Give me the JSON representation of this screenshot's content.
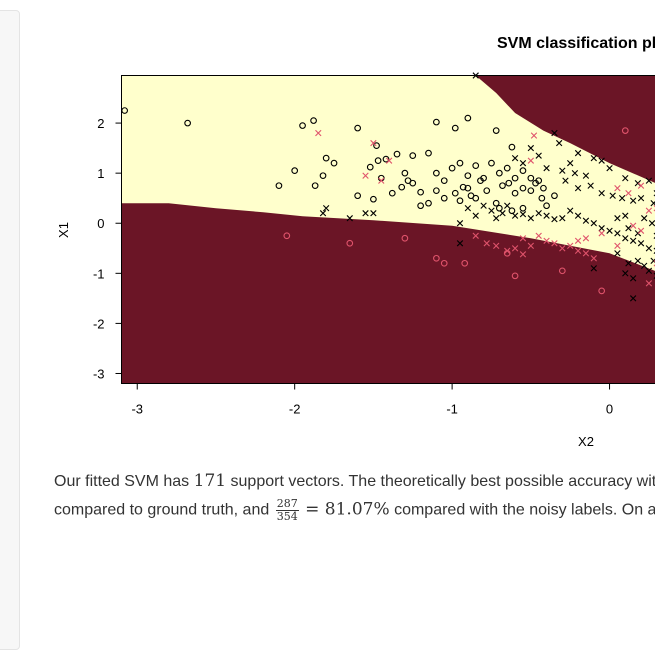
{
  "sidebar": {},
  "chart_data": {
    "type": "scatter",
    "title": "SVM classification plot",
    "xlabel": "X2",
    "ylabel": "X1",
    "xticks": [
      "-3",
      "-2",
      "-1",
      "0"
    ],
    "yticks": [
      "2",
      "1",
      "0",
      "-1",
      "-2",
      "-3"
    ],
    "xlim": [
      -3.1,
      0.33
    ],
    "ylim": [
      -3.2,
      2.95
    ],
    "region_colors": {
      "class_a": "#6b1526",
      "class_b": "#ffffcc"
    },
    "marker_colors": {
      "black": "#000000",
      "red": "#df536b"
    },
    "lower_boundary": [
      [
        -3.1,
        0.4
      ],
      [
        -2.8,
        0.4
      ],
      [
        -2.5,
        0.3
      ],
      [
        -2.2,
        0.22
      ],
      [
        -1.95,
        0.14
      ],
      [
        -1.5,
        0.06
      ],
      [
        -1.0,
        -0.05
      ],
      [
        -0.5,
        -0.3
      ],
      [
        0.0,
        -0.6
      ],
      [
        0.33,
        -1.0
      ]
    ],
    "upper_boundary": [
      [
        -0.85,
        3.0
      ],
      [
        -0.72,
        2.6
      ],
      [
        -0.6,
        2.2
      ],
      [
        -0.42,
        1.85
      ],
      [
        -0.25,
        1.6
      ],
      [
        0.0,
        1.2
      ],
      [
        0.33,
        0.75
      ]
    ],
    "series": [
      {
        "name": "support vectors, class o",
        "marker": "o",
        "color": "#000000",
        "points": [
          [
            -3.08,
            2.25
          ],
          [
            -2.68,
            2.0
          ],
          [
            -1.95,
            1.95
          ],
          [
            -1.88,
            2.05
          ],
          [
            -1.6,
            1.9
          ],
          [
            -1.1,
            2.02
          ],
          [
            -0.98,
            1.9
          ],
          [
            -0.9,
            2.1
          ],
          [
            -0.72,
            1.85
          ],
          [
            -0.62,
            1.52
          ],
          [
            -1.48,
            1.55
          ],
          [
            -1.47,
            1.25
          ],
          [
            -1.42,
            1.28
          ],
          [
            -1.8,
            1.3
          ],
          [
            -1.75,
            1.2
          ],
          [
            -1.35,
            1.38
          ],
          [
            -1.25,
            1.35
          ],
          [
            -1.15,
            1.4
          ],
          [
            -2.0,
            1.05
          ],
          [
            -2.1,
            0.75
          ],
          [
            -1.87,
            0.75
          ],
          [
            -1.82,
            0.95
          ],
          [
            -1.52,
            1.12
          ],
          [
            -1.3,
            1.0
          ],
          [
            -1.25,
            0.8
          ],
          [
            -1.1,
            1.0
          ],
          [
            -1.05,
            0.85
          ],
          [
            -1.0,
            1.1
          ],
          [
            -0.95,
            1.2
          ],
          [
            -0.9,
            0.95
          ],
          [
            -0.85,
            1.15
          ],
          [
            -0.8,
            0.9
          ],
          [
            -0.75,
            1.2
          ],
          [
            -0.7,
            1.0
          ],
          [
            -0.65,
            1.1
          ],
          [
            -0.6,
            0.9
          ],
          [
            -0.55,
            1.05
          ],
          [
            -0.5,
            0.9
          ],
          [
            -0.45,
            0.85
          ],
          [
            -0.42,
            0.7
          ],
          [
            -0.35,
            0.55
          ],
          [
            -1.6,
            0.55
          ],
          [
            -1.5,
            0.48
          ],
          [
            -1.38,
            0.6
          ],
          [
            -1.32,
            0.72
          ],
          [
            -1.28,
            0.85
          ],
          [
            -1.2,
            0.62
          ],
          [
            -1.15,
            0.4
          ],
          [
            -1.1,
            0.65
          ],
          [
            -1.05,
            0.5
          ],
          [
            -0.98,
            0.6
          ],
          [
            -0.95,
            0.45
          ],
          [
            -0.93,
            0.72
          ],
          [
            -0.9,
            0.7
          ],
          [
            -0.88,
            0.55
          ],
          [
            -0.85,
            0.5
          ],
          [
            -0.82,
            0.85
          ],
          [
            -0.78,
            0.65
          ],
          [
            -0.72,
            0.4
          ],
          [
            -0.68,
            0.75
          ],
          [
            -0.64,
            0.8
          ],
          [
            -0.6,
            0.6
          ],
          [
            -0.55,
            0.7
          ],
          [
            -0.5,
            0.65
          ],
          [
            -0.47,
            0.8
          ],
          [
            -0.43,
            0.5
          ],
          [
            -0.4,
            0.35
          ],
          [
            -0.7,
            0.3
          ],
          [
            -0.62,
            0.25
          ],
          [
            -0.55,
            0.3
          ],
          [
            -1.45,
            0.9
          ],
          [
            -1.2,
            0.35
          ]
        ]
      },
      {
        "name": "support vectors, class x",
        "marker": "x",
        "color": "#000000",
        "points": [
          [
            -0.85,
            2.95
          ],
          [
            -0.35,
            1.8
          ],
          [
            -0.25,
            1.2
          ],
          [
            -0.32,
            1.6
          ],
          [
            -0.2,
            1.4
          ],
          [
            -0.1,
            1.3
          ],
          [
            -0.05,
            1.25
          ],
          [
            0.0,
            1.1
          ],
          [
            -0.5,
            1.5
          ],
          [
            -0.45,
            1.35
          ],
          [
            -0.4,
            1.1
          ],
          [
            -0.3,
            1.05
          ],
          [
            -0.22,
            1.0
          ],
          [
            -0.15,
            0.95
          ],
          [
            -0.6,
            1.3
          ],
          [
            -0.55,
            1.2
          ],
          [
            -0.28,
            0.85
          ],
          [
            -0.2,
            0.7
          ],
          [
            -0.12,
            0.75
          ],
          [
            -0.05,
            0.6
          ],
          [
            0.02,
            0.55
          ],
          [
            0.08,
            0.5
          ],
          [
            0.15,
            0.45
          ],
          [
            0.2,
            0.5
          ],
          [
            0.28,
            0.4
          ],
          [
            0.1,
            0.9
          ],
          [
            0.18,
            0.8
          ],
          [
            0.25,
            0.85
          ],
          [
            0.3,
            0.6
          ],
          [
            -1.8,
            0.3
          ],
          [
            -1.82,
            0.2
          ],
          [
            -1.65,
            0.1
          ],
          [
            -1.55,
            0.2
          ],
          [
            -1.5,
            0.2
          ],
          [
            -0.95,
            0.0
          ],
          [
            -0.9,
            0.3
          ],
          [
            -0.85,
            0.15
          ],
          [
            -0.8,
            0.35
          ],
          [
            -0.75,
            0.25
          ],
          [
            -0.72,
            0.1
          ],
          [
            -0.68,
            0.2
          ],
          [
            -0.65,
            0.35
          ],
          [
            -0.6,
            0.15
          ],
          [
            -0.55,
            0.18
          ],
          [
            -0.5,
            0.1
          ],
          [
            -0.45,
            0.2
          ],
          [
            -0.4,
            0.15
          ],
          [
            -0.35,
            0.08
          ],
          [
            -0.3,
            0.1
          ],
          [
            -0.25,
            0.25
          ],
          [
            -0.2,
            0.15
          ],
          [
            -0.15,
            0.05
          ],
          [
            -0.1,
            0.0
          ],
          [
            -0.05,
            -0.1
          ],
          [
            0.0,
            -0.15
          ],
          [
            0.05,
            -0.2
          ],
          [
            0.1,
            -0.3
          ],
          [
            0.15,
            -0.35
          ],
          [
            0.2,
            -0.4
          ],
          [
            0.25,
            -0.5
          ],
          [
            0.3,
            -0.55
          ],
          [
            0.05,
            0.1
          ],
          [
            0.1,
            0.15
          ],
          [
            0.12,
            -0.1
          ],
          [
            0.18,
            -0.2
          ],
          [
            0.22,
            0.1
          ],
          [
            0.27,
            0.0
          ],
          [
            0.3,
            -0.25
          ],
          [
            0.05,
            -0.6
          ],
          [
            0.12,
            -0.8
          ],
          [
            0.18,
            -0.75
          ],
          [
            0.22,
            -0.85
          ],
          [
            0.25,
            -0.95
          ],
          [
            0.3,
            -1.05
          ],
          [
            0.1,
            -1.0
          ],
          [
            0.15,
            -1.1
          ],
          [
            0.28,
            -0.75
          ],
          [
            0.15,
            -1.5
          ],
          [
            -0.95,
            -0.4
          ],
          [
            -0.1,
            -0.9
          ]
        ]
      },
      {
        "name": "misclassified, class o",
        "marker": "o",
        "color": "#df536b",
        "points": [
          [
            -2.05,
            -0.25
          ],
          [
            -1.65,
            -0.4
          ],
          [
            -1.3,
            -0.3
          ],
          [
            -1.1,
            -0.7
          ],
          [
            -1.05,
            -0.8
          ],
          [
            -0.92,
            -0.8
          ],
          [
            -0.65,
            -0.6
          ],
          [
            -0.6,
            -1.05
          ],
          [
            -0.3,
            -0.95
          ],
          [
            0.1,
            1.85
          ],
          [
            -0.05,
            -1.35
          ]
        ]
      },
      {
        "name": "misclassified, class x",
        "marker": "x",
        "color": "#df536b",
        "points": [
          [
            -1.85,
            1.8
          ],
          [
            -1.5,
            1.6
          ],
          [
            -1.4,
            1.25
          ],
          [
            -1.55,
            0.95
          ],
          [
            -1.45,
            0.85
          ],
          [
            -0.5,
            1.25
          ],
          [
            -0.48,
            1.75
          ],
          [
            -0.85,
            -0.25
          ],
          [
            -0.78,
            -0.4
          ],
          [
            -0.72,
            -0.45
          ],
          [
            -0.65,
            -0.55
          ],
          [
            -0.6,
            -0.5
          ],
          [
            -0.55,
            -0.3
          ],
          [
            -0.5,
            -0.45
          ],
          [
            -0.45,
            -0.25
          ],
          [
            -0.4,
            -0.35
          ],
          [
            -0.35,
            -0.4
          ],
          [
            -0.3,
            -0.5
          ],
          [
            -0.25,
            -0.45
          ],
          [
            -0.2,
            -0.55
          ],
          [
            -0.15,
            -0.6
          ],
          [
            -0.1,
            -0.7
          ],
          [
            -0.2,
            -0.35
          ],
          [
            -0.15,
            -0.3
          ],
          [
            -0.05,
            -0.2
          ],
          [
            0.05,
            0.7
          ],
          [
            0.12,
            0.6
          ],
          [
            0.2,
            0.75
          ],
          [
            0.25,
            0.25
          ],
          [
            0.3,
            0.3
          ],
          [
            0.15,
            -0.05
          ],
          [
            0.2,
            -0.15
          ],
          [
            0.3,
            -0.8
          ],
          [
            0.05,
            -0.45
          ],
          [
            0.25,
            -1.2
          ],
          [
            -0.55,
            -0.62
          ]
        ]
      }
    ]
  },
  "text": {
    "p1_before": "Our fitted SVM has",
    "p1_num": "171",
    "p1_after": "support vectors. The theoretically best possible accuracy wit",
    "p2_before": "compared to ground truth, and",
    "frac_num": "287",
    "frac_den": "354",
    "p2_eq": "= 81.07%",
    "p2_after": "compared with the noisy labels. On a"
  }
}
